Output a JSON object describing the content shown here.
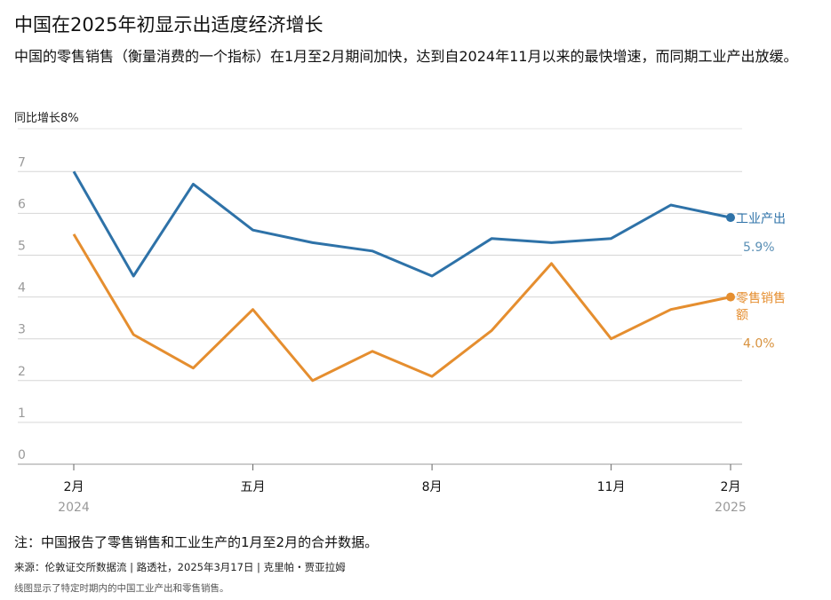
{
  "title": "中国在2025年初显示出适度经济增长",
  "subtitle": "中国的零售销售（衡量消费的一个指标）在1月至2月期间加快，达到自2024年11月以来的最快增速，而同期工业产出放缓。",
  "note": "注：中国报告了零售销售和工业生产的1月至2月的合并数据。",
  "source": "来源：伦敦证交所数据流 | 路透社，2025年3月17日 | 克里帕・贾亚拉姆",
  "alt_text": "线图显示了特定时期内的中国工业产出和零售销售。",
  "chart_data": {
    "type": "line",
    "ylabel": "同比增长8%",
    "ylim": [
      0,
      8
    ],
    "y_ticks": [
      "0",
      "1",
      "2",
      "3",
      "4",
      "5",
      "6",
      "7"
    ],
    "x": [
      "2024-02",
      "2024-03",
      "2024-04",
      "2024-05",
      "2024-06",
      "2024-07",
      "2024-08",
      "2024-09",
      "2024-10",
      "2024-11",
      "2024-12",
      "2025-02"
    ],
    "x_tick_labels": [
      {
        "index": 0,
        "label": "2月",
        "year": "2024"
      },
      {
        "index": 3,
        "label": "五月",
        "year": ""
      },
      {
        "index": 6,
        "label": "8月",
        "year": ""
      },
      {
        "index": 9,
        "label": "11月",
        "year": ""
      },
      {
        "index": 11,
        "label": "2月",
        "year": "2025"
      }
    ],
    "series": [
      {
        "name": "工业产出",
        "color": "#2e72a8",
        "value_label_color": "#5a8fb5",
        "end_label": "5.9%",
        "values": [
          7.0,
          4.5,
          6.7,
          5.6,
          5.3,
          5.1,
          4.5,
          5.4,
          5.3,
          5.4,
          6.2,
          5.9
        ]
      },
      {
        "name": "零售销售额",
        "color": "#e58e2f",
        "value_label_color": "#d8923e",
        "end_label": "4.0%",
        "values": [
          5.5,
          3.1,
          2.3,
          3.7,
          2.0,
          2.7,
          2.1,
          3.2,
          4.8,
          3.0,
          3.7,
          4.0
        ]
      }
    ],
    "grid": true,
    "legend": "line-end labels"
  }
}
